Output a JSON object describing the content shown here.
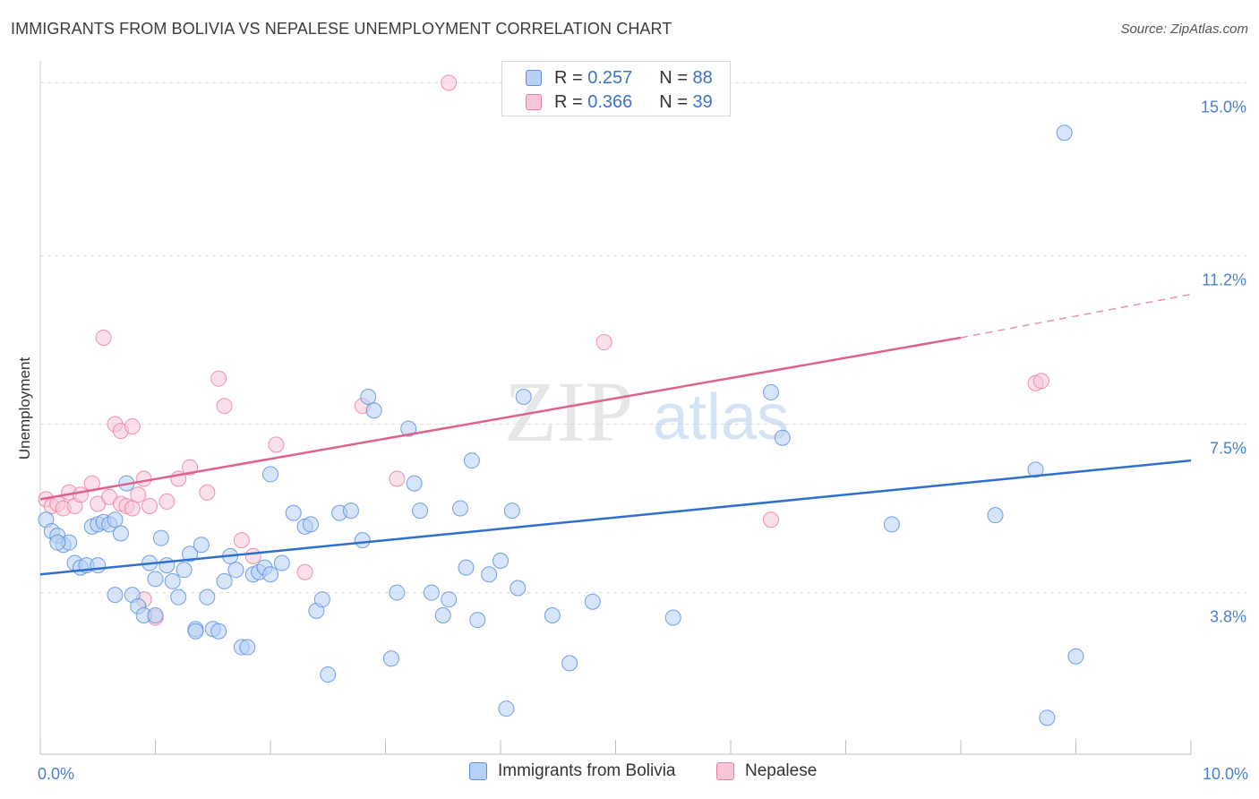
{
  "header": {
    "title": "IMMIGRANTS FROM BOLIVIA VS NEPALESE UNEMPLOYMENT CORRELATION CHART",
    "source": "Source: ZipAtlas.com"
  },
  "watermark": {
    "zip": "ZIP",
    "atlas": "atlas"
  },
  "legend_top": {
    "rows": [
      {
        "r_label": "R =",
        "r_value": "0.257",
        "n_label": "N =",
        "n_value": "88"
      },
      {
        "r_label": "R =",
        "r_value": "0.366",
        "n_label": "N =",
        "n_value": "39"
      }
    ]
  },
  "legend_bottom": {
    "items": [
      "Immigrants from Bolivia",
      "Nepalese"
    ]
  },
  "chart_data": {
    "type": "scatter",
    "title": "IMMIGRANTS FROM BOLIVIA VS NEPALESE UNEMPLOYMENT CORRELATION CHART",
    "xlabel": "",
    "ylabel": "Unemployment",
    "xlim": [
      0,
      10
    ],
    "ylim": [
      0.25,
      15.4
    ],
    "x_tick_labels": [
      "0.0%",
      "10.0%"
    ],
    "y_ticks": [
      3.8,
      7.5,
      11.2,
      15.0
    ],
    "y_tick_labels": [
      "3.8%",
      "7.5%",
      "11.2%",
      "15.0%"
    ],
    "grid": true,
    "legend_placement": "top-center",
    "colors": {
      "bolivia": "#5b8fdf",
      "bolivia_fill": "#b7d0f5",
      "nepalese": "#ec7fa0",
      "nepalese_fill": "#f8c6d6",
      "bolivia_line": "#2e6fd0",
      "nepalese_line": "#e0628c"
    },
    "series": [
      {
        "name": "Immigrants from Bolivia",
        "r": 0.257,
        "n": 88,
        "trend": {
          "x": [
            0,
            10
          ],
          "y": [
            4.2,
            6.7
          ]
        },
        "points": [
          [
            0.05,
            5.4
          ],
          [
            0.1,
            5.15
          ],
          [
            0.15,
            5.05
          ],
          [
            0.2,
            4.85
          ],
          [
            0.25,
            4.9
          ],
          [
            0.3,
            4.45
          ],
          [
            0.35,
            4.35
          ],
          [
            0.4,
            4.4
          ],
          [
            0.45,
            5.25
          ],
          [
            0.5,
            5.3
          ],
          [
            0.55,
            5.35
          ],
          [
            0.5,
            4.4
          ],
          [
            0.6,
            5.3
          ],
          [
            0.65,
            5.4
          ],
          [
            0.7,
            5.1
          ],
          [
            0.75,
            6.2
          ],
          [
            0.8,
            3.75
          ],
          [
            0.85,
            3.5
          ],
          [
            0.9,
            3.3
          ],
          [
            0.95,
            4.45
          ],
          [
            1.0,
            4.1
          ],
          [
            1.05,
            5.0
          ],
          [
            1.1,
            4.4
          ],
          [
            1.15,
            4.05
          ],
          [
            1.2,
            3.7
          ],
          [
            1.25,
            4.3
          ],
          [
            1.3,
            4.65
          ],
          [
            1.35,
            3.0
          ],
          [
            1.4,
            4.85
          ],
          [
            1.45,
            3.7
          ],
          [
            1.5,
            3.0
          ],
          [
            1.55,
            2.95
          ],
          [
            1.6,
            4.05
          ],
          [
            1.65,
            4.6
          ],
          [
            1.7,
            4.3
          ],
          [
            1.75,
            2.6
          ],
          [
            1.8,
            2.6
          ],
          [
            1.85,
            4.2
          ],
          [
            1.9,
            4.25
          ],
          [
            1.95,
            4.35
          ],
          [
            2.0,
            6.4
          ],
          [
            2.1,
            4.45
          ],
          [
            2.2,
            5.55
          ],
          [
            2.3,
            5.25
          ],
          [
            2.35,
            5.3
          ],
          [
            2.4,
            3.4
          ],
          [
            2.45,
            3.65
          ],
          [
            2.5,
            2.0
          ],
          [
            2.6,
            5.55
          ],
          [
            2.7,
            5.6
          ],
          [
            2.8,
            4.95
          ],
          [
            2.85,
            8.1
          ],
          [
            2.9,
            7.8
          ],
          [
            3.05,
            2.35
          ],
          [
            3.1,
            3.8
          ],
          [
            3.2,
            7.4
          ],
          [
            3.25,
            6.2
          ],
          [
            3.3,
            5.6
          ],
          [
            3.4,
            3.8
          ],
          [
            3.5,
            3.3
          ],
          [
            3.55,
            3.65
          ],
          [
            3.65,
            5.65
          ],
          [
            3.7,
            4.35
          ],
          [
            3.75,
            6.7
          ],
          [
            3.8,
            3.2
          ],
          [
            3.9,
            4.2
          ],
          [
            4.0,
            4.5
          ],
          [
            4.05,
            1.25
          ],
          [
            4.1,
            5.6
          ],
          [
            4.15,
            3.9
          ],
          [
            4.2,
            8.1
          ],
          [
            4.45,
            3.3
          ],
          [
            4.6,
            2.25
          ],
          [
            4.8,
            3.6
          ],
          [
            5.5,
            3.25
          ],
          [
            6.35,
            8.2
          ],
          [
            6.45,
            7.2
          ],
          [
            7.4,
            5.3
          ],
          [
            8.3,
            5.5
          ],
          [
            8.65,
            6.5
          ],
          [
            8.75,
            1.05
          ],
          [
            9.0,
            2.4
          ],
          [
            8.9,
            13.9
          ],
          [
            0.15,
            4.9
          ],
          [
            0.65,
            3.75
          ],
          [
            1.0,
            3.3
          ],
          [
            1.35,
            2.95
          ],
          [
            2.0,
            4.2
          ]
        ]
      },
      {
        "name": "Nepalese",
        "r": 0.366,
        "n": 39,
        "trend": {
          "x": [
            0,
            8
          ],
          "y": [
            5.85,
            9.4
          ]
        },
        "trend_ext": {
          "x": [
            8,
            10
          ],
          "y": [
            9.4,
            10.35
          ]
        },
        "points": [
          [
            0.05,
            5.85
          ],
          [
            0.1,
            5.7
          ],
          [
            0.15,
            5.75
          ],
          [
            0.2,
            5.65
          ],
          [
            0.25,
            6.0
          ],
          [
            0.3,
            5.7
          ],
          [
            0.35,
            5.95
          ],
          [
            0.45,
            6.2
          ],
          [
            0.5,
            5.75
          ],
          [
            0.6,
            5.9
          ],
          [
            0.7,
            5.75
          ],
          [
            0.75,
            5.7
          ],
          [
            0.8,
            5.65
          ],
          [
            0.85,
            5.95
          ],
          [
            0.9,
            6.3
          ],
          [
            0.95,
            5.7
          ],
          [
            0.55,
            9.4
          ],
          [
            0.65,
            7.5
          ],
          [
            0.7,
            7.35
          ],
          [
            0.8,
            7.45
          ],
          [
            0.9,
            3.65
          ],
          [
            1.0,
            3.25
          ],
          [
            1.1,
            5.8
          ],
          [
            1.2,
            6.3
          ],
          [
            1.3,
            6.55
          ],
          [
            1.45,
            6.0
          ],
          [
            1.55,
            8.5
          ],
          [
            1.6,
            7.9
          ],
          [
            1.75,
            4.95
          ],
          [
            1.85,
            4.6
          ],
          [
            2.05,
            7.05
          ],
          [
            2.3,
            4.25
          ],
          [
            2.8,
            7.9
          ],
          [
            3.1,
            6.3
          ],
          [
            3.55,
            15.0
          ],
          [
            4.9,
            9.3
          ],
          [
            6.35,
            5.4
          ],
          [
            8.65,
            8.4
          ],
          [
            8.7,
            8.45
          ]
        ]
      }
    ]
  }
}
